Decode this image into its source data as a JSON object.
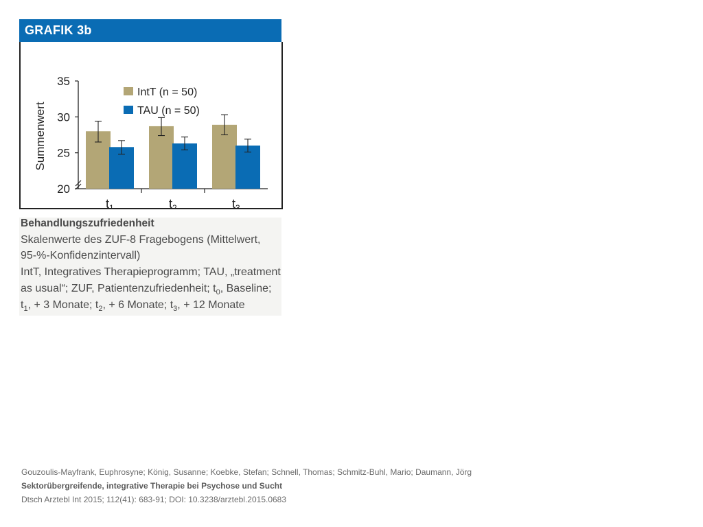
{
  "figure": {
    "header": "GRAFIK 3b"
  },
  "chart_data": {
    "type": "bar",
    "ylabel": "Summenwert",
    "ylim": [
      20,
      35
    ],
    "yticks": [
      20,
      25,
      30,
      35
    ],
    "categories": [
      "t1",
      "t2",
      "t3"
    ],
    "category_labels": [
      {
        "base": "t",
        "sub": "1"
      },
      {
        "base": "t",
        "sub": "2"
      },
      {
        "base": "t",
        "sub": "3"
      }
    ],
    "axis_break": true,
    "legend_position": "top-left",
    "grid": false,
    "series": [
      {
        "name": "IntT (n = 50)",
        "color": "#b3a676",
        "values": [
          28.0,
          28.7,
          28.9
        ],
        "ci_low": [
          26.5,
          27.4,
          27.5
        ],
        "ci_high": [
          29.4,
          29.9,
          30.3
        ]
      },
      {
        "name": "TAU (n = 50)",
        "color": "#0a6cb4",
        "values": [
          25.8,
          26.3,
          26.0
        ],
        "ci_low": [
          24.8,
          25.4,
          25.1
        ],
        "ci_high": [
          26.7,
          27.2,
          26.9
        ]
      }
    ]
  },
  "caption": {
    "title": "Behandlungszufriedenheit",
    "line1": "Skalenwerte des ZUF-8 Fragebogens (Mittelwert,",
    "line2": "95-%-Konfidenzintervall)",
    "line3": "IntT, Integratives Therapieprogramm; TAU, „treatment",
    "line4": "as usual“; ZUF, Patientenzufriedenheit; t0, Baseline;",
    "line5": "t1, + 3 Monate; t2, + 6 Monate; t3, + 12 Monate"
  },
  "citation": {
    "authors": "Gouzoulis-Mayfrank, Euphrosyne; König, Susanne; Koebke, Stefan; Schnell, Thomas; Schmitz-Buhl, Mario; Daumann, Jörg",
    "title": "Sektorübergreifende, integrative Therapie bei Psychose und Sucht",
    "source": "Dtsch Arztebl Int 2015; 112(41): 683-91; DOI: 10.3238/arztebl.2015.0683"
  }
}
